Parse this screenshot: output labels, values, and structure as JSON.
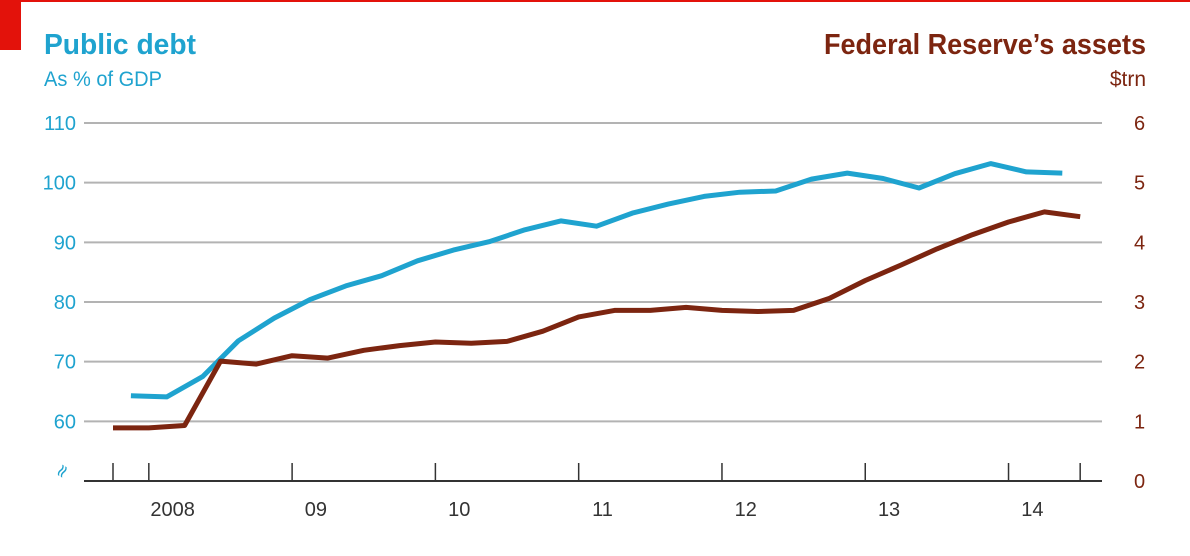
{
  "chart_data": {
    "type": "line",
    "title_left": "Public debt",
    "subtitle_left": "As % of GDP",
    "title_right": "Federal Reserve’s assets",
    "subtitle_right": "$trn",
    "left_axis": {
      "min": 50,
      "max": 110,
      "ticks": [
        "110",
        "100",
        "90",
        "80",
        "70",
        "60"
      ],
      "tick_values": [
        110,
        100,
        90,
        80,
        70,
        60
      ],
      "break_symbol": "≈"
    },
    "right_axis": {
      "min": 0,
      "max": 6,
      "ticks": [
        "6",
        "5",
        "4",
        "3",
        "2",
        "1",
        "0"
      ],
      "tick_values": [
        6,
        5,
        4,
        3,
        2,
        1,
        0
      ]
    },
    "x_axis": {
      "start": 2007.75,
      "end": 2014.75,
      "labels": [
        "2008",
        "09",
        "10",
        "11",
        "12",
        "13",
        "14"
      ],
      "label_positions": [
        2008.25,
        2009.25,
        2010.25,
        2011.25,
        2012.25,
        2013.25,
        2014.25
      ]
    },
    "grid": true,
    "colors": {
      "debt": "#1fa3cf",
      "fed": "#7c2510",
      "grid": "#b3b3b3",
      "axis": "#333333",
      "accent": "#e3120b"
    },
    "series": [
      {
        "name": "Public debt",
        "axis": "left",
        "x": [
          2007.875,
          2008.125,
          2008.375,
          2008.625,
          2008.875,
          2009.125,
          2009.375,
          2009.625,
          2009.875,
          2010.125,
          2010.375,
          2010.625,
          2010.875,
          2011.125,
          2011.375,
          2011.625,
          2011.875,
          2012.125,
          2012.375,
          2012.625,
          2012.875,
          2013.125,
          2013.375,
          2013.625,
          2013.875,
          2014.125,
          2014.375
        ],
        "values": [
          64.3,
          64.1,
          67.5,
          73.5,
          77.3,
          80.4,
          82.7,
          84.4,
          86.9,
          88.7,
          90.1,
          92.1,
          93.6,
          92.7,
          94.9,
          96.4,
          97.7,
          98.4,
          98.6,
          100.6,
          101.6,
          100.7,
          99.1,
          101.5,
          103.2,
          101.8,
          101.6
        ]
      },
      {
        "name": "Federal Reserve’s assets",
        "axis": "right",
        "x": [
          2007.75,
          2008.0,
          2008.25,
          2008.5,
          2008.75,
          2009.0,
          2009.25,
          2009.5,
          2009.75,
          2010.0,
          2010.25,
          2010.5,
          2010.75,
          2011.0,
          2011.25,
          2011.5,
          2011.75,
          2012.0,
          2012.25,
          2012.5,
          2012.75,
          2013.0,
          2013.25,
          2013.5,
          2013.75,
          2014.0,
          2014.25,
          2014.5
        ],
        "values": [
          0.89,
          0.89,
          0.93,
          2.01,
          1.96,
          2.1,
          2.06,
          2.19,
          2.27,
          2.33,
          2.31,
          2.34,
          2.51,
          2.75,
          2.86,
          2.86,
          2.91,
          2.86,
          2.84,
          2.86,
          3.06,
          3.36,
          3.62,
          3.89,
          4.13,
          4.34,
          4.51,
          4.43
        ]
      }
    ]
  }
}
